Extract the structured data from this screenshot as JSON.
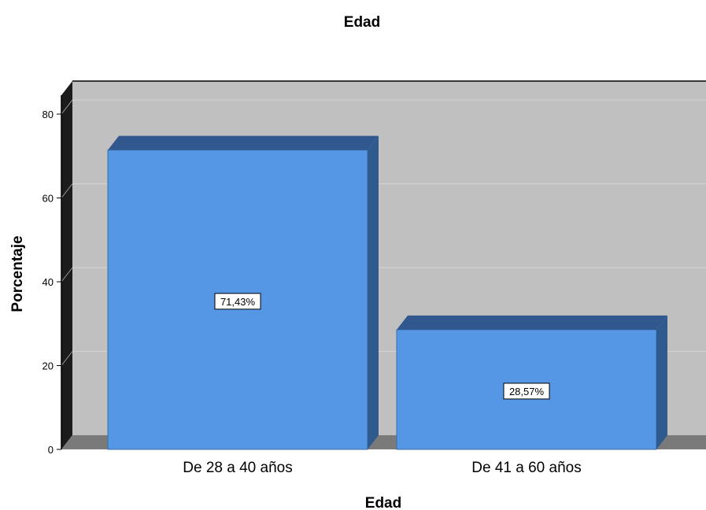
{
  "chart_data": {
    "type": "bar",
    "title": "Edad",
    "xlabel": "Edad",
    "ylabel": "Porcentaje",
    "categories": [
      "De 28 a 40 años",
      "De 41 a 60 años"
    ],
    "values": [
      71.43,
      28.57
    ],
    "data_labels": [
      "71,43%",
      "28,57%"
    ],
    "ylim": [
      0,
      80
    ],
    "yticks": [
      "0",
      "20",
      "40",
      "60",
      "80"
    ],
    "grid": true,
    "legend": "none",
    "colors": {
      "bar_front": "#5596e5",
      "bar_top": "#30588f",
      "bar_side": "#2f5a8e",
      "plot_background": "#c0c0c0",
      "floor": "#7a7a7a",
      "gridline": "#d4d4d4"
    }
  }
}
